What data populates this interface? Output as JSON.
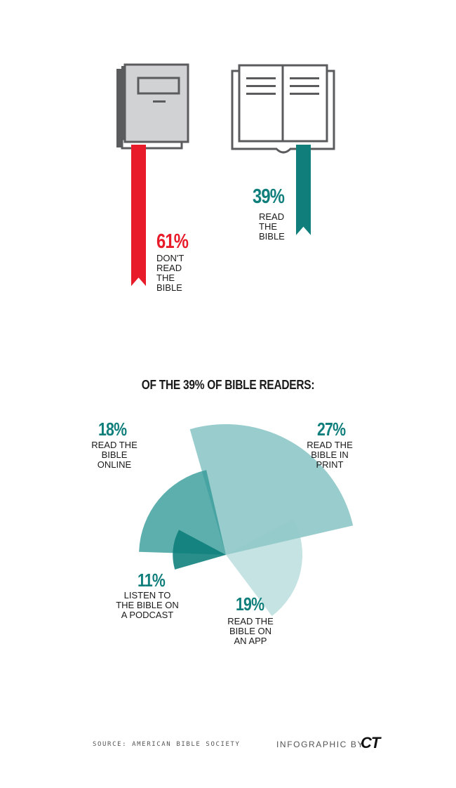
{
  "colors": {
    "red": "#e81b2a",
    "teal": "#107f7c",
    "gray_book": "#d1d2d4",
    "gray_stroke": "#5a5b5d",
    "wedge_online": "#5eaeae",
    "wedge_podcast": "#1f8f8b",
    "wedge_print": "#93c9c9",
    "wedge_app": "#c2e2e2"
  },
  "chart_data": [
    {
      "type": "bar",
      "title": "",
      "categories": [
        "DON'T READ THE BIBLE",
        "READ THE BIBLE"
      ],
      "values": [
        61,
        39
      ],
      "ylim": [
        0,
        100
      ],
      "labels": [
        {
          "pct": "61%",
          "lines": [
            "DON'T",
            "READ",
            "THE",
            "BIBLE"
          ]
        },
        {
          "pct": "39%",
          "lines": [
            "READ",
            "THE",
            "BIBLE"
          ]
        }
      ]
    },
    {
      "type": "pie",
      "title": "OF THE 39% OF BIBLE READERS:",
      "slices": [
        {
          "key": "online",
          "pct": "18%",
          "value": 18,
          "lines": [
            "READ THE",
            "BIBLE",
            "ONLINE"
          ]
        },
        {
          "key": "podcast",
          "pct": "11%",
          "value": 11,
          "lines": [
            "LISTEN TO",
            "THE BIBLE ON",
            "A PODCAST"
          ]
        },
        {
          "key": "print",
          "pct": "27%",
          "value": 27,
          "lines": [
            "READ THE",
            "BIBLE IN",
            "PRINT"
          ]
        },
        {
          "key": "app",
          "pct": "19%",
          "value": 19,
          "lines": [
            "READ THE",
            "BIBLE ON",
            "AN APP"
          ]
        }
      ]
    }
  ],
  "footer": {
    "source": "SOURCE: AMERICAN BIBLE SOCIETY",
    "credit": "INFOGRAPHIC BY",
    "logo": "CT"
  }
}
